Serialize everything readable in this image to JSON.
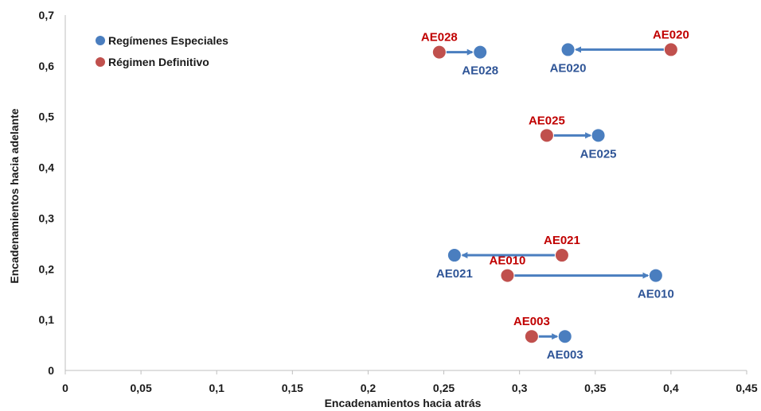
{
  "chart_data": {
    "type": "scatter",
    "xlabel": "Encadenamientos hacia atrás",
    "ylabel": "Encadenamientos hacia adelante",
    "xlim": [
      0,
      0.45
    ],
    "ylim": [
      0,
      0.7
    ],
    "x_ticks": [
      0,
      0.05,
      0.1,
      0.15,
      0.2,
      0.25,
      0.3,
      0.35,
      0.4,
      0.45
    ],
    "x_tick_labels": [
      "0",
      "0,05",
      "0,1",
      "0,15",
      "0,2",
      "0,25",
      "0,3",
      "0,35",
      "0,4",
      "0,45"
    ],
    "y_ticks": [
      0,
      0.1,
      0.2,
      0.3,
      0.4,
      0.5,
      0.6,
      0.7
    ],
    "y_tick_labels": [
      "0",
      "0,1",
      "0,2",
      "0,3",
      "0,4",
      "0,5",
      "0,6",
      "0,7"
    ],
    "legend_position": "top-left",
    "grid": false,
    "series": [
      {
        "name": "Regímenes Especiales",
        "color": "#4a7ebf",
        "points": [
          {
            "label": "AE028",
            "x": 0.274,
            "y": 0.627
          },
          {
            "label": "AE020",
            "x": 0.332,
            "y": 0.632
          },
          {
            "label": "AE025",
            "x": 0.352,
            "y": 0.463
          },
          {
            "label": "AE021",
            "x": 0.257,
            "y": 0.227
          },
          {
            "label": "AE010",
            "x": 0.39,
            "y": 0.187
          },
          {
            "label": "AE003",
            "x": 0.33,
            "y": 0.067
          }
        ]
      },
      {
        "name": "Régimen Definitivo",
        "color": "#c0504d",
        "points": [
          {
            "label": "AE028",
            "x": 0.247,
            "y": 0.627
          },
          {
            "label": "AE020",
            "x": 0.4,
            "y": 0.632
          },
          {
            "label": "AE025",
            "x": 0.318,
            "y": 0.463
          },
          {
            "label": "AE021",
            "x": 0.328,
            "y": 0.227
          },
          {
            "label": "AE010",
            "x": 0.292,
            "y": 0.187
          },
          {
            "label": "AE003",
            "x": 0.308,
            "y": 0.067
          }
        ]
      }
    ],
    "arrow_color": "#4a7ebf",
    "arrows": [
      {
        "from": "AE028",
        "direction": "Régimen Definitivo → Regímenes Especiales"
      },
      {
        "from": "AE020",
        "direction": "Régimen Definitivo → Regímenes Especiales"
      },
      {
        "from": "AE025",
        "direction": "Régimen Definitivo → Regímenes Especiales"
      },
      {
        "from": "AE021",
        "direction": "Régimen Definitivo → Regímenes Especiales"
      },
      {
        "from": "AE010",
        "direction": "Régimen Definitivo → Regímenes Especiales"
      },
      {
        "from": "AE003",
        "direction": "Régimen Definitivo → Regímenes Especiales"
      }
    ]
  }
}
